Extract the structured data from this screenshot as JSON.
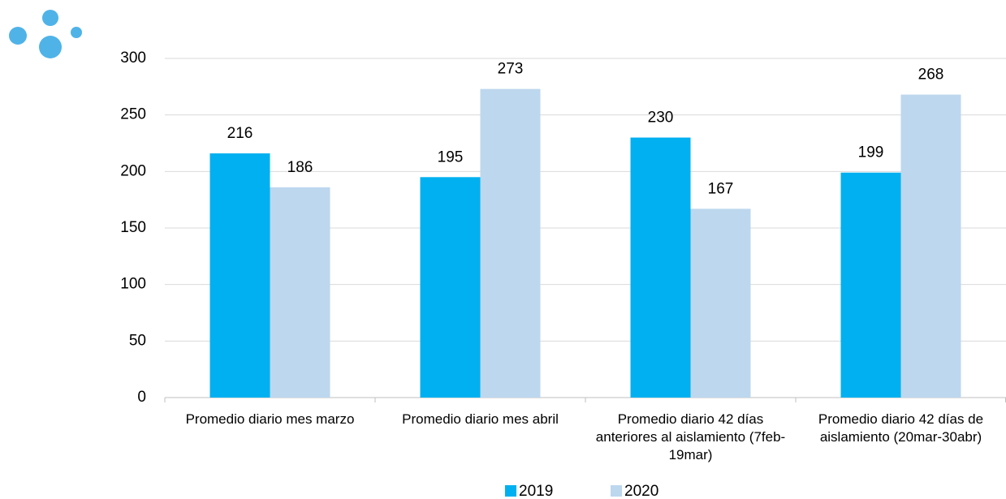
{
  "chart_data": {
    "type": "bar",
    "categories": [
      "Promedio diario mes marzo",
      "Promedio diario mes abril",
      "Promedio diario 42 días anteriores al aislamiento (7feb-19mar)",
      "Promedio diario 42 días de aislamiento (20mar-30abr)"
    ],
    "series": [
      {
        "name": "2019",
        "color": "#00b0f0",
        "values": [
          216,
          195,
          230,
          199
        ]
      },
      {
        "name": "2020",
        "color": "#bdd7ee",
        "values": [
          186,
          273,
          167,
          268
        ]
      }
    ],
    "ylim": [
      0,
      300
    ],
    "yticks": [
      0,
      50,
      100,
      150,
      200,
      250,
      300
    ],
    "grid": true,
    "legend": "bottom"
  }
}
